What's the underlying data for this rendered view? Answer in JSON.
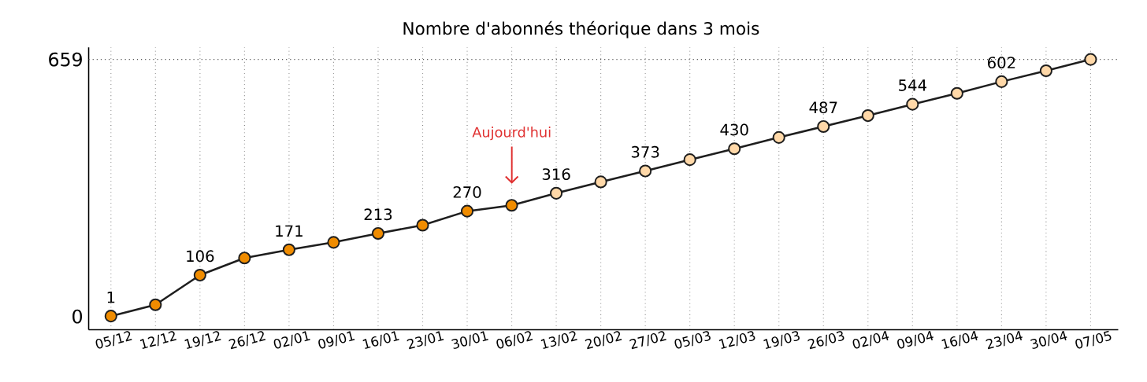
{
  "chart_data": {
    "type": "line",
    "title": "Nombre d'abonnés théorique dans 3 mois",
    "categories": [
      "05/12",
      "12/12",
      "19/12",
      "26/12",
      "02/01",
      "09/01",
      "16/01",
      "23/01",
      "30/01",
      "06/02",
      "13/02",
      "20/02",
      "27/02",
      "05/03",
      "12/03",
      "19/03",
      "26/03",
      "02/04",
      "09/04",
      "16/04",
      "23/04",
      "30/04",
      "07/05"
    ],
    "values": [
      1,
      30,
      106,
      150,
      171,
      190,
      213,
      234,
      270,
      285,
      316,
      345,
      373,
      402,
      430,
      459,
      487,
      515,
      544,
      572,
      602,
      630,
      659
    ],
    "value_labels": [
      "1",
      null,
      "106",
      null,
      "171",
      null,
      "213",
      null,
      "270",
      null,
      "316",
      null,
      "373",
      null,
      "430",
      null,
      "487",
      null,
      "544",
      null,
      "602",
      null,
      null
    ],
    "color": "#1e1e1e",
    "colors": [
      "#f08c00",
      "#f08c00",
      "#f08c00",
      "#f08c00",
      "#f08c00",
      "#f08c00",
      "#f08c00",
      "#f08c00",
      "#f08c00",
      "#f08c00",
      "#ffd8a8",
      "#ffd8a8",
      "#ffd8a8",
      "#ffd8a8",
      "#ffd8a8",
      "#ffd8a8",
      "#ffd8a8",
      "#ffd8a8",
      "#ffd8a8",
      "#ffd8a8",
      "#ffd8a8",
      "#ffd8a8",
      "#ffd8a8"
    ],
    "marker": "circle",
    "line_style": "solid",
    "grid": "x",
    "ylim": [
      -34,
      690
    ],
    "yticks": [
      0,
      659
    ],
    "ref_lines": [
      {
        "axis": "y",
        "value": 659,
        "color": "#555555",
        "line_style": "dotted"
      }
    ],
    "annotations": [
      "Aujourd'hui"
    ]
  }
}
